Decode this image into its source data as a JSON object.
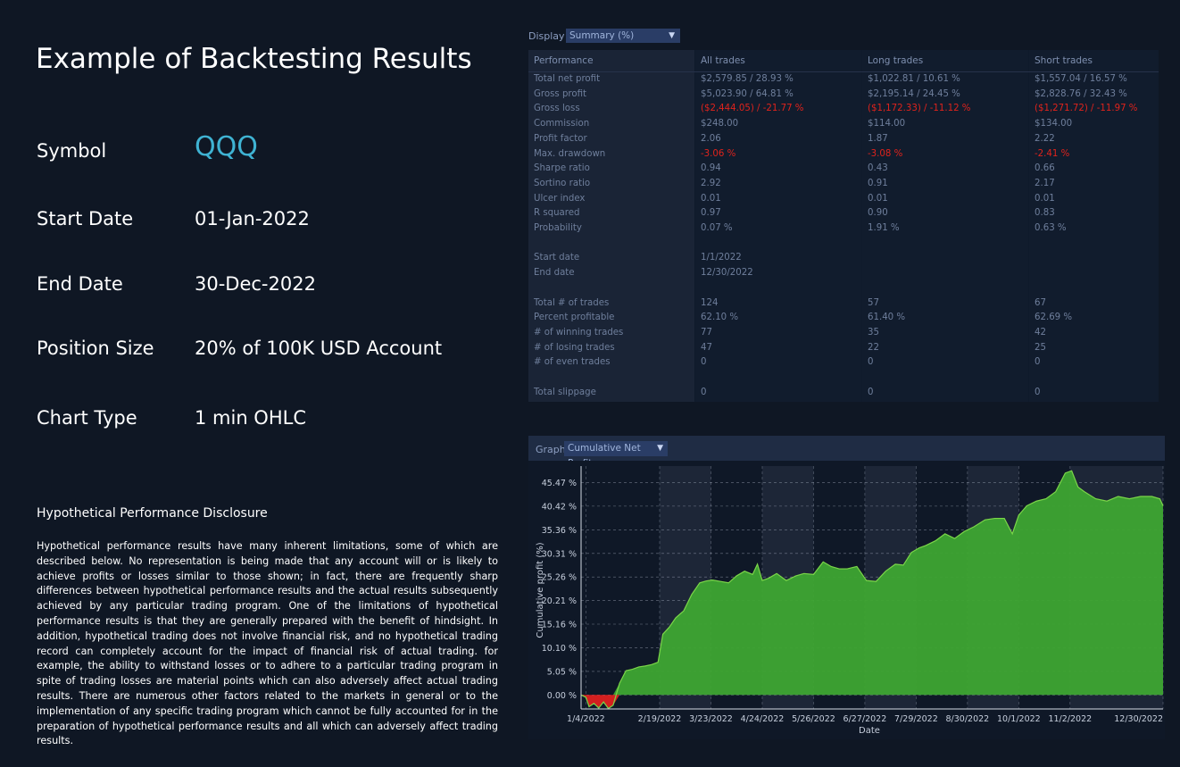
{
  "left": {
    "title": "Example of Backtesting Results",
    "fields": [
      {
        "label": "Symbol",
        "value": "QQQ"
      },
      {
        "label": "Start Date",
        "value": "01-Jan-2022"
      },
      {
        "label": "End Date",
        "value": "30-Dec-2022"
      },
      {
        "label": "Position Size",
        "value": "20% of 100K USD Account"
      },
      {
        "label": "Chart Type",
        "value": "1 min OHLC"
      }
    ],
    "disclosure_title": "Hypothetical Performance Disclosure",
    "disclosure_text": "Hypothetical performance results have many inherent limitations, some of which are described below. No representation is being made that any account will or is likely to achieve profits or losses similar to those shown; in fact, there are frequently sharp differences between hypothetical performance results and the actual results subsequently achieved by any particular trading program. One of the limitations of hypothetical performance results is that they are generally prepared with the benefit of hindsight. In addition, hypothetical trading does not involve financial risk, and no hypothetical trading record can completely account for the impact of financial risk of actual trading. for example, the ability to withstand losses or to adhere to a particular trading program in spite of trading losses are material points which can also adversely affect actual trading results. There are numerous other factors related to the markets in general or to the implementation of any specific trading program which cannot be fully accounted for in the preparation of hypothetical performance results and all which can adversely affect trading results."
  },
  "display": {
    "label": "Display",
    "selected": "Summary (%)"
  },
  "table": {
    "headers": [
      "Performance",
      "All trades",
      "Long trades",
      "Short trades"
    ],
    "rows": [
      {
        "label": "Total net profit",
        "all": "$2,579.85 / 28.93 %",
        "long": "$1,022.81 / 10.61 %",
        "short": "$1,557.04 / 16.57 %",
        "neg": false
      },
      {
        "label": "Gross profit",
        "all": "$5,023.90 / 64.81 %",
        "long": "$2,195.14 / 24.45 %",
        "short": "$2,828.76 / 32.43 %",
        "neg": false
      },
      {
        "label": "Gross loss",
        "all": "($2,444.05) / -21.77 %",
        "long": "($1,172.33) / -11.12 %",
        "short": "($1,271.72) / -11.97 %",
        "neg": true
      },
      {
        "label": "Commission",
        "all": "$248.00",
        "long": "$114.00",
        "short": "$134.00",
        "neg": false
      },
      {
        "label": "Profit factor",
        "all": "2.06",
        "long": "1.87",
        "short": "2.22",
        "neg": false
      },
      {
        "label": "Max. drawdown",
        "all": "-3.06 %",
        "long": "-3.08 %",
        "short": "-2.41 %",
        "neg": true
      },
      {
        "label": "Sharpe ratio",
        "all": "0.94",
        "long": "0.43",
        "short": "0.66",
        "neg": false
      },
      {
        "label": "Sortino ratio",
        "all": "2.92",
        "long": "0.91",
        "short": "2.17",
        "neg": false
      },
      {
        "label": "Ulcer index",
        "all": "0.01",
        "long": "0.01",
        "short": "0.01",
        "neg": false
      },
      {
        "label": "R squared",
        "all": "0.97",
        "long": "0.90",
        "short": "0.83",
        "neg": false
      },
      {
        "label": "Probability",
        "all": "0.07 %",
        "long": "1.91 %",
        "short": "0.63 %",
        "neg": false
      },
      {
        "label": "",
        "all": "",
        "long": "",
        "short": "",
        "neg": false
      },
      {
        "label": "Start date",
        "all": "1/1/2022",
        "long": "",
        "short": "",
        "neg": false
      },
      {
        "label": "End date",
        "all": "12/30/2022",
        "long": "",
        "short": "",
        "neg": false
      },
      {
        "label": "",
        "all": "",
        "long": "",
        "short": "",
        "neg": false
      },
      {
        "label": "Total # of trades",
        "all": "124",
        "long": "57",
        "short": "67",
        "neg": false
      },
      {
        "label": "Percent profitable",
        "all": "62.10 %",
        "long": "61.40 %",
        "short": "62.69 %",
        "neg": false
      },
      {
        "label": "# of winning trades",
        "all": "77",
        "long": "35",
        "short": "42",
        "neg": false
      },
      {
        "label": "# of losing trades",
        "all": "47",
        "long": "22",
        "short": "25",
        "neg": false
      },
      {
        "label": "# of even trades",
        "all": "0",
        "long": "0",
        "short": "0",
        "neg": false
      },
      {
        "label": "",
        "all": "",
        "long": "",
        "short": "",
        "neg": false
      },
      {
        "label": "Total slippage",
        "all": "0",
        "long": "0",
        "short": "0",
        "neg": false
      }
    ]
  },
  "graph": {
    "label": "Graph",
    "selected": "Cumulative Net Profit"
  },
  "chart_data": {
    "type": "area",
    "title": "",
    "xlabel": "Date",
    "ylabel": "Cumulative profit (%)",
    "y_ticks": [
      "0.00 %",
      "5.05 %",
      "10.10 %",
      "15.16 %",
      "20.21 %",
      "25.26 %",
      "30.31 %",
      "35.36 %",
      "40.42 %",
      "45.47 %"
    ],
    "y_tick_values": [
      0,
      5.05,
      10.1,
      15.16,
      20.21,
      25.26,
      30.31,
      35.36,
      40.42,
      45.47
    ],
    "x_ticks": [
      "1/4/2022",
      "2/19/2022",
      "3/23/2022",
      "4/24/2022",
      "5/26/2022",
      "6/27/2022",
      "7/29/2022",
      "8/30/2022",
      "10/1/2022",
      "11/2/2022",
      "12/30/2022"
    ],
    "ylim": [
      -3,
      49
    ],
    "x": [
      "1/1/2022",
      "1/4/2022",
      "1/6/2022",
      "1/9/2022",
      "1/12/2022",
      "1/15/2022",
      "1/18/2022",
      "1/21/2022",
      "1/25/2022",
      "1/29/2022",
      "2/2/2022",
      "2/6/2022",
      "2/10/2022",
      "2/14/2022",
      "2/18/2022",
      "2/21/2022",
      "2/25/2022",
      "3/1/2022",
      "3/6/2022",
      "3/11/2022",
      "3/16/2022",
      "3/20/2022",
      "3/24/2022",
      "3/29/2022",
      "4/3/2022",
      "4/8/2022",
      "4/13/2022",
      "4/18/2022",
      "4/21/2022",
      "4/24/2022",
      "4/28/2022",
      "5/3/2022",
      "5/9/2022",
      "5/15/2022",
      "5/20/2022",
      "5/26/2022",
      "6/1/2022",
      "6/6/2022",
      "6/11/2022",
      "6/16/2022",
      "6/22/2022",
      "6/28/2022",
      "7/4/2022",
      "7/10/2022",
      "7/16/2022",
      "7/21/2022",
      "7/26/2022",
      "7/31/2022",
      "8/4/2022",
      "8/10/2022",
      "8/16/2022",
      "8/22/2022",
      "8/28/2022",
      "9/3/2022",
      "9/10/2022",
      "9/16/2022",
      "9/22/2022",
      "9/27/2022",
      "10/1/2022",
      "10/6/2022",
      "10/12/2022",
      "10/18/2022",
      "10/24/2022",
      "10/30/2022",
      "11/3/2022",
      "11/7/2022",
      "11/11/2022",
      "11/18/2022",
      "11/25/2022",
      "12/2/2022",
      "12/9/2022",
      "12/16/2022",
      "12/23/2022",
      "12/28/2022",
      "12/30/2022"
    ],
    "values": [
      0.0,
      -0.5,
      -2.5,
      -1.8,
      -2.8,
      -1.5,
      -2.9,
      -2.2,
      2.5,
      5.2,
      5.5,
      6.0,
      6.2,
      6.5,
      7.0,
      13.0,
      14.5,
      16.5,
      18.0,
      21.5,
      24.0,
      24.4,
      24.6,
      24.3,
      24.0,
      25.5,
      26.5,
      25.8,
      28.0,
      24.5,
      25.0,
      26.0,
      24.5,
      25.5,
      26.0,
      25.8,
      28.5,
      27.5,
      27.0,
      27.0,
      27.5,
      24.5,
      24.3,
      26.5,
      28.0,
      27.8,
      30.5,
      31.5,
      32.0,
      33.0,
      34.5,
      33.5,
      35.0,
      36.0,
      37.5,
      37.8,
      37.8,
      34.5,
      38.5,
      40.5,
      41.5,
      42.0,
      43.5,
      47.5,
      48.0,
      44.5,
      43.5,
      42.0,
      41.5,
      42.5,
      42.0,
      42.5,
      42.5,
      42.0,
      40.5
    ],
    "fill_color": "#3ea531",
    "line_color": "#7bd649",
    "negative_color": "#d41f1f",
    "grid": true
  }
}
